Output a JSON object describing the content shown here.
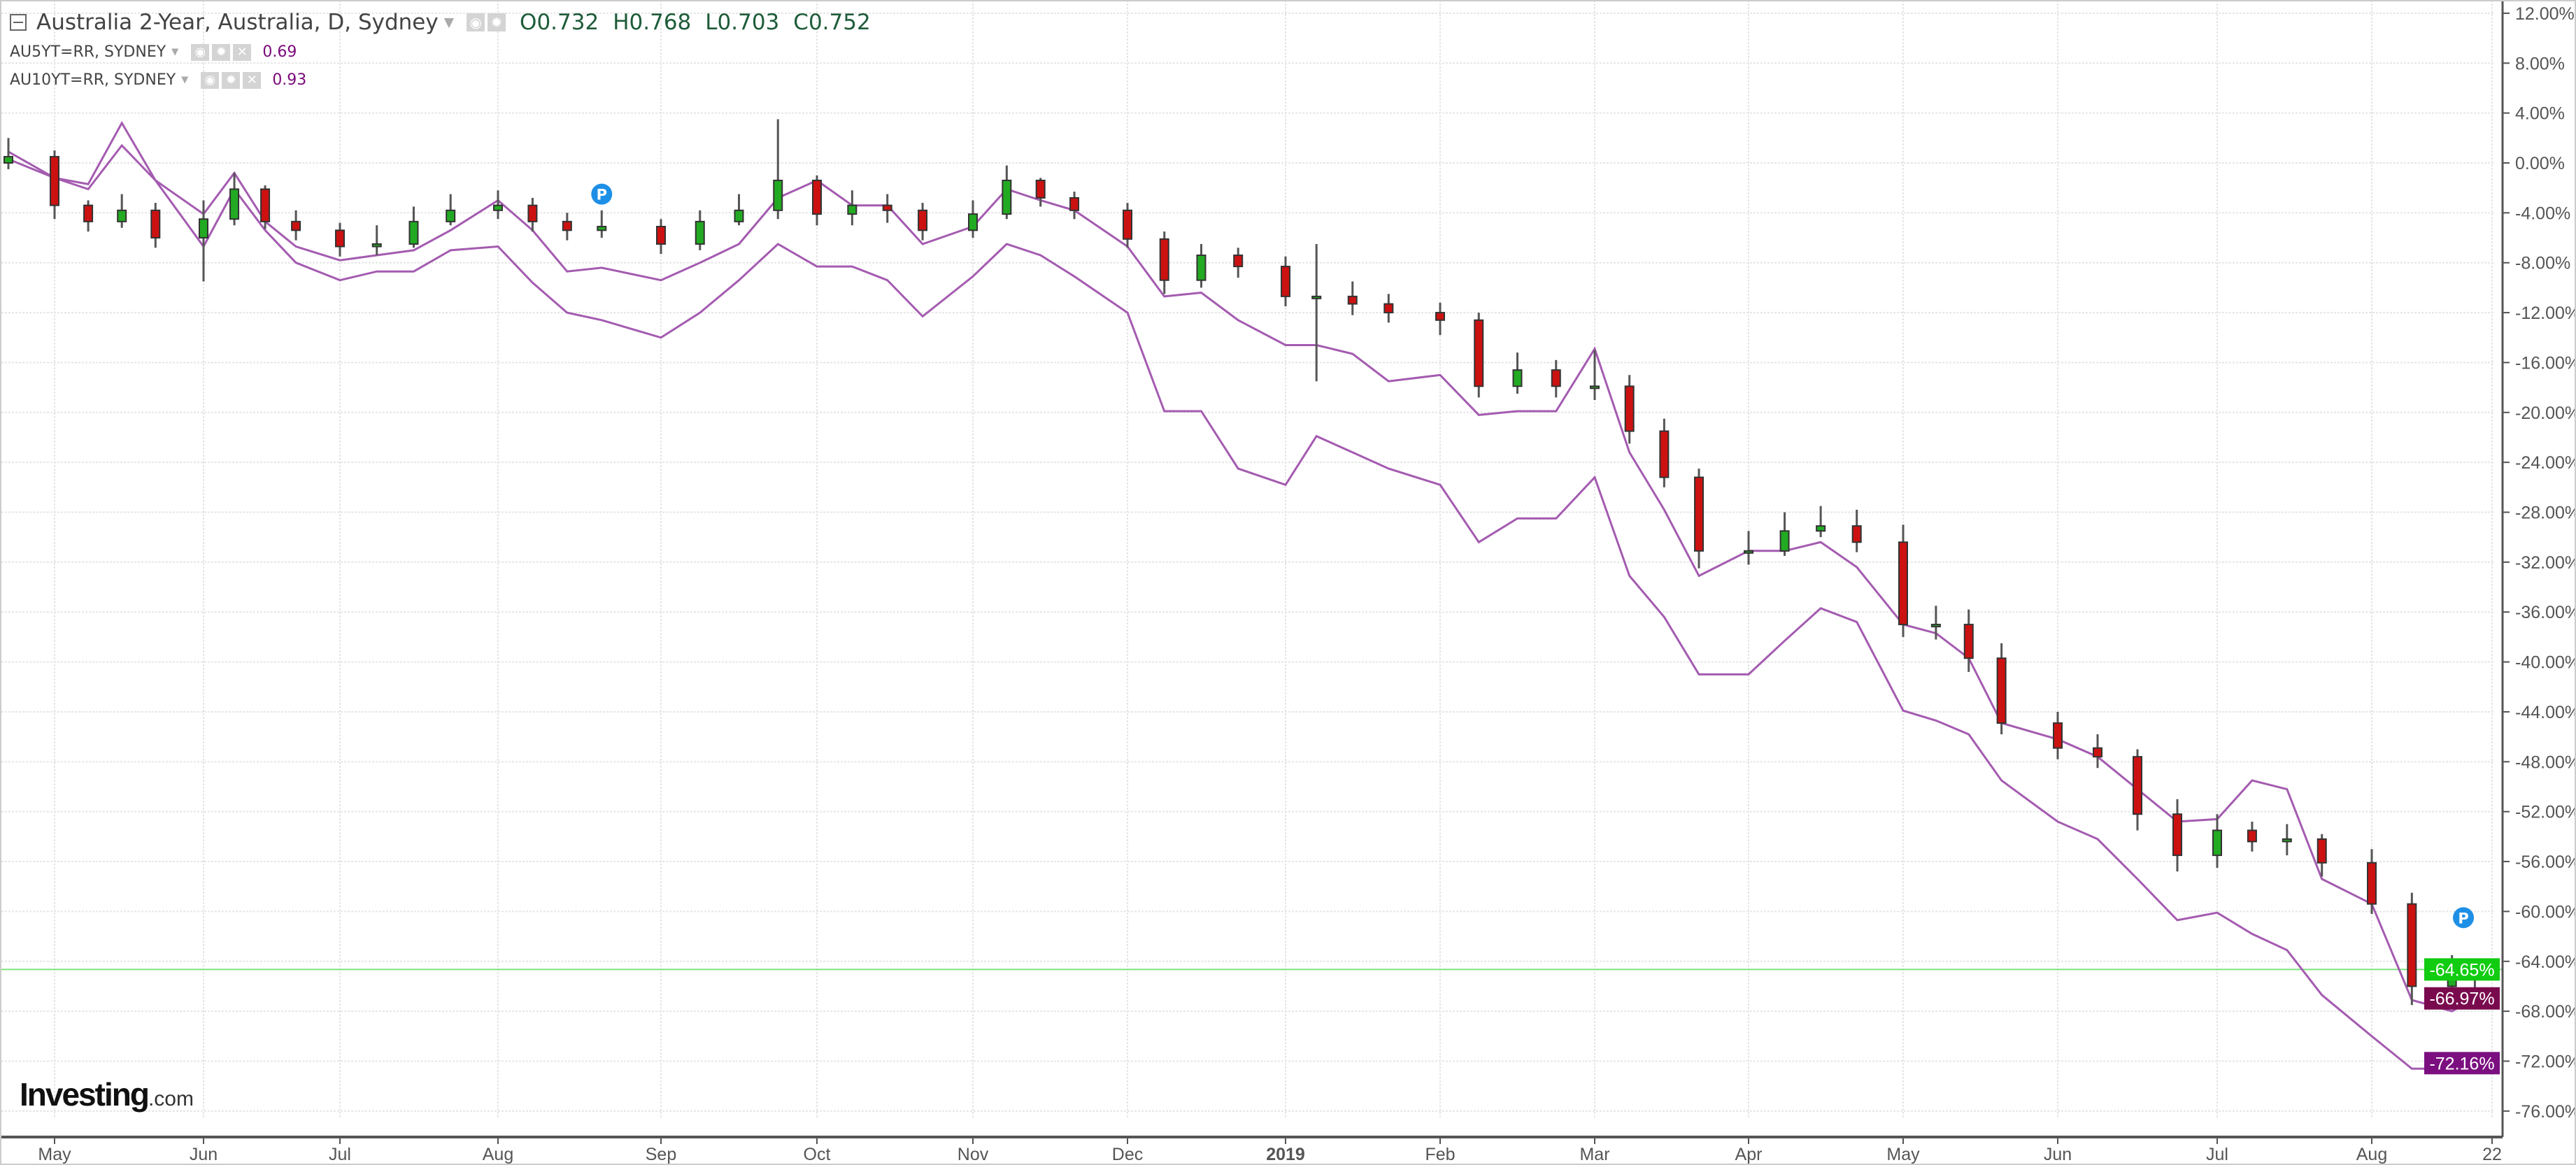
{
  "header": {
    "title": "Australia 2-Year, Australia, D, Sydney",
    "ohlc": {
      "open": "O0.732",
      "high": "H0.768",
      "low": "L0.703",
      "close": "C0.752"
    },
    "overlays": [
      {
        "label": "AU5YT=RR, SYDNEY",
        "value": "0.69"
      },
      {
        "label": "AU10YT=RR, SYDNEY",
        "value": "0.93"
      }
    ],
    "icons": [
      "eye-icon",
      "gear-icon",
      "close-icon",
      "caret-down-icon",
      "collapse-icon"
    ]
  },
  "logo": {
    "main": "Investing",
    "suffix": ".com"
  },
  "colors": {
    "up": "#22aa22",
    "down": "#cc1111",
    "line": "#a45bb0",
    "last_price": "#11cc11",
    "au5y_label": "#7a0a4e",
    "au10y_label": "#7b0f80",
    "marker": "#1e8fe6",
    "grid": "#e6e6e6"
  },
  "chart_data": {
    "type": "candlestick+line",
    "y_unit": "%",
    "ylim": [
      -78,
      13
    ],
    "y_ticks": [
      12,
      8,
      4,
      0,
      -4,
      -8,
      -12,
      -16,
      -20,
      -24,
      -28,
      -32,
      -36,
      -40,
      -44,
      -48,
      -52,
      -56,
      -60,
      -64,
      -68,
      -72,
      -76
    ],
    "y_tick_labels": [
      "12.00%",
      "8.00%",
      "4.00%",
      "0.00%",
      "-4.00%",
      "-8.00%",
      "-12.00%",
      "-16.00%",
      "-20.00%",
      "-24.00%",
      "-28.00%",
      "-32.00%",
      "-36.00%",
      "-40.00%",
      "-44.00%",
      "-48.00%",
      "-52.00%",
      "-56.00%",
      "-60.00%",
      "-64.00%",
      "-68.00%",
      "-72.00%",
      "-76.00%"
    ],
    "x_ticks": [
      {
        "date": "2018-05-01",
        "label": "May"
      },
      {
        "date": "2018-06-01",
        "label": "Jun"
      },
      {
        "date": "2018-07-02",
        "label": "Jul"
      },
      {
        "date": "2018-08-01",
        "label": "Aug"
      },
      {
        "date": "2018-09-03",
        "label": "Sep"
      },
      {
        "date": "2018-10-01",
        "label": "Oct"
      },
      {
        "date": "2018-11-01",
        "label": "Nov"
      },
      {
        "date": "2018-12-03",
        "label": "Dec"
      },
      {
        "date": "2019-01-02",
        "label": "2019"
      },
      {
        "date": "2019-02-01",
        "label": "Feb"
      },
      {
        "date": "2019-03-01",
        "label": "Mar"
      },
      {
        "date": "2019-04-01",
        "label": "Apr"
      },
      {
        "date": "2019-05-01",
        "label": "May"
      },
      {
        "date": "2019-06-03",
        "label": "Jun"
      },
      {
        "date": "2019-07-01",
        "label": "Jul"
      },
      {
        "date": "2019-08-01",
        "label": "Aug"
      },
      {
        "date": "2019-08-22",
        "label": "22"
      }
    ],
    "grid": true,
    "last_values": [
      {
        "series": "AU2Y",
        "label": "-64.65%",
        "value": -64.65
      },
      {
        "series": "AU5YT=RR",
        "label": "-66.97%",
        "value": -66.97
      },
      {
        "series": "AU10YT=RR",
        "label": "-72.16%",
        "value": -72.16
      }
    ],
    "markers": [
      {
        "date": "2018-08-22",
        "value": -2.5,
        "label": "P"
      },
      {
        "date": "2019-08-17",
        "value": -60.5,
        "label": "P"
      }
    ],
    "dates": [
      "2018-04-23",
      "2018-05-01",
      "2018-05-08",
      "2018-05-15",
      "2018-05-22",
      "2018-06-01",
      "2018-06-08",
      "2018-06-15",
      "2018-06-22",
      "2018-07-02",
      "2018-07-09",
      "2018-07-16",
      "2018-07-23",
      "2018-08-01",
      "2018-08-08",
      "2018-08-15",
      "2018-08-22",
      "2018-09-03",
      "2018-09-10",
      "2018-09-17",
      "2018-09-24",
      "2018-10-01",
      "2018-10-08",
      "2018-10-15",
      "2018-10-22",
      "2018-11-01",
      "2018-11-08",
      "2018-11-15",
      "2018-11-22",
      "2018-12-03",
      "2018-12-10",
      "2018-12-17",
      "2018-12-24",
      "2019-01-02",
      "2019-01-08",
      "2019-01-15",
      "2019-01-22",
      "2019-02-01",
      "2019-02-08",
      "2019-02-15",
      "2019-02-22",
      "2019-03-01",
      "2019-03-08",
      "2019-03-15",
      "2019-03-22",
      "2019-04-01",
      "2019-04-08",
      "2019-04-15",
      "2019-04-22",
      "2019-05-01",
      "2019-05-08",
      "2019-05-15",
      "2019-05-22",
      "2019-06-03",
      "2019-06-10",
      "2019-06-17",
      "2019-06-24",
      "2019-07-01",
      "2019-07-08",
      "2019-07-15",
      "2019-07-22",
      "2019-08-01",
      "2019-08-08",
      "2019-08-15",
      "2019-08-19"
    ],
    "candles": {
      "name": "AU2Y",
      "close": [
        0.5,
        -3.4,
        -4.7,
        -3.8,
        -6.0,
        -4.5,
        -2.1,
        -4.7,
        -5.4,
        -6.7,
        -6.5,
        -4.7,
        -3.8,
        -3.4,
        -4.7,
        -5.4,
        -5.1,
        -6.5,
        -4.7,
        -3.8,
        -1.4,
        -4.1,
        -3.4,
        -3.8,
        -5.4,
        -4.1,
        -1.4,
        -2.8,
        -3.8,
        -6.1,
        -9.4,
        -7.4,
        -8.3,
        -10.7,
        -10.7,
        -11.3,
        -12.0,
        -12.6,
        -17.9,
        -16.6,
        -17.9,
        -17.9,
        -21.5,
        -25.2,
        -31.1,
        -31.1,
        -29.5,
        -29.1,
        -30.4,
        -37.0,
        -37.0,
        -39.7,
        -44.9,
        -46.9,
        -47.6,
        -52.2,
        -55.5,
        -53.5,
        -54.4,
        -54.2,
        -56.1,
        -59.4,
        -66.0,
        -65.3,
        -64.65
      ],
      "high": [
        2.0,
        1.0,
        -3.0,
        -2.5,
        -3.2,
        -3.0,
        -0.8,
        -1.8,
        -3.8,
        -4.8,
        -5.0,
        -3.5,
        -2.5,
        -2.2,
        -2.8,
        -4.0,
        -3.8,
        -4.5,
        -3.8,
        -2.5,
        3.5,
        -1.0,
        -2.2,
        -2.5,
        -3.2,
        -3.0,
        -0.2,
        -1.2,
        -2.3,
        -3.2,
        -5.5,
        -6.5,
        -6.8,
        -7.5,
        -6.5,
        -9.5,
        -10.5,
        -11.2,
        -12.0,
        -15.2,
        -15.8,
        -15.0,
        -17.0,
        -20.5,
        -24.5,
        -29.5,
        -28.0,
        -27.5,
        -27.8,
        -29.0,
        -35.5,
        -35.8,
        -38.5,
        -44.0,
        -45.8,
        -47.0,
        -51.0,
        -52.2,
        -52.8,
        -53.0,
        -53.8,
        -55.0,
        -58.5,
        -63.5,
        -63.8
      ],
      "low": [
        -0.5,
        -4.5,
        -5.5,
        -5.2,
        -6.8,
        -9.5,
        -5.0,
        -5.3,
        -6.2,
        -7.5,
        -7.4,
        -6.8,
        -5.0,
        -4.5,
        -5.5,
        -6.2,
        -6.0,
        -7.3,
        -7.0,
        -5.0,
        -4.5,
        -5.0,
        -5.0,
        -4.8,
        -6.2,
        -6.0,
        -4.5,
        -3.5,
        -4.5,
        -6.8,
        -10.5,
        -10.0,
        -9.2,
        -11.5,
        -17.5,
        -12.2,
        -12.8,
        -13.8,
        -18.8,
        -18.5,
        -18.8,
        -19.0,
        -22.5,
        -26.0,
        -32.5,
        -32.2,
        -31.5,
        -30.0,
        -31.2,
        -38.0,
        -38.2,
        -40.8,
        -45.8,
        -47.8,
        -48.5,
        -53.5,
        -56.8,
        -56.5,
        -55.2,
        -55.5,
        -57.2,
        -60.2,
        -67.5,
        -67.0,
        -66.3
      ]
    },
    "series": [
      {
        "name": "AU5YT=RR",
        "values": [
          0.9,
          -1.2,
          -1.7,
          3.2,
          -1.4,
          -4.1,
          -0.8,
          -4.7,
          -6.7,
          -7.8,
          -7.4,
          -7.0,
          -5.4,
          -3.0,
          -5.4,
          -8.7,
          -8.4,
          -9.4,
          -8.0,
          -6.5,
          -2.8,
          -1.4,
          -3.4,
          -3.4,
          -6.5,
          -5.1,
          -2.1,
          -3.0,
          -3.8,
          -6.7,
          -10.7,
          -10.4,
          -12.6,
          -14.6,
          -14.6,
          -15.3,
          -17.5,
          -17.0,
          -20.2,
          -19.9,
          -19.9,
          -14.9,
          -23.2,
          -27.8,
          -33.1,
          -31.1,
          -31.1,
          -30.4,
          -32.4,
          -37.0,
          -37.7,
          -39.7,
          -44.9,
          -46.2,
          -47.6,
          -50.2,
          -52.8,
          -52.6,
          -49.5,
          -50.2,
          -57.4,
          -59.4,
          -67.1,
          -68.0,
          -66.97
        ]
      },
      {
        "name": "AU10YT=RR",
        "values": [
          0.3,
          -1.2,
          -2.1,
          1.4,
          -1.4,
          -6.7,
          -2.1,
          -5.4,
          -8.0,
          -9.4,
          -8.7,
          -8.7,
          -7.0,
          -6.7,
          -9.6,
          -12.0,
          -12.6,
          -14.0,
          -12.0,
          -9.4,
          -6.5,
          -8.3,
          -8.3,
          -9.4,
          -12.3,
          -9.1,
          -6.5,
          -7.4,
          -9.1,
          -12.0,
          -19.9,
          -19.9,
          -24.5,
          -25.8,
          -21.9,
          -23.2,
          -24.5,
          -25.8,
          -30.4,
          -28.5,
          -28.5,
          -25.2,
          -33.1,
          -36.4,
          -41.0,
          -41.0,
          -38.3,
          -35.7,
          -36.8,
          -43.9,
          -44.7,
          -45.8,
          -49.5,
          -52.8,
          -54.2,
          -57.4,
          -60.7,
          -60.1,
          -61.8,
          -63.1,
          -66.7,
          -70.0,
          -72.6,
          -72.6,
          -72.16
        ]
      }
    ]
  }
}
